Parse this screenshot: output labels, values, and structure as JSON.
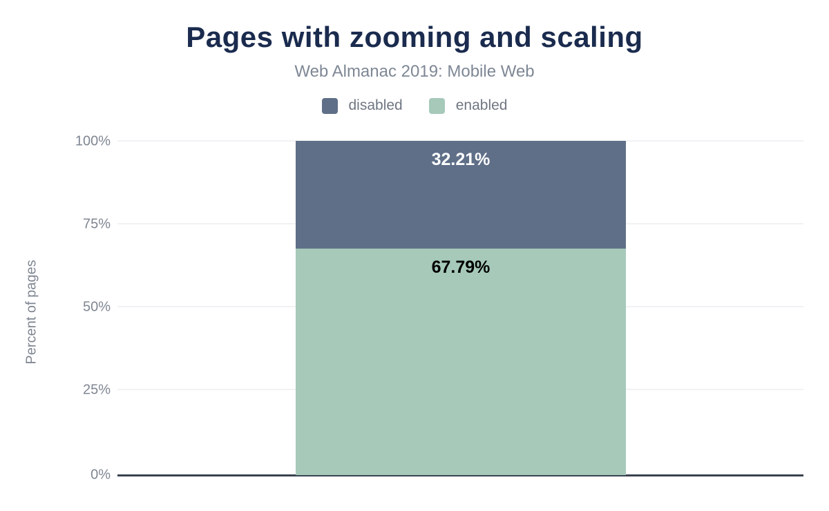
{
  "chart_data": {
    "type": "bar",
    "stacked": true,
    "title": "Pages with zooming and scaling",
    "subtitle": "Web Almanac 2019: Mobile Web",
    "ylabel": "Percent of pages",
    "xlabel": "",
    "categories": [
      ""
    ],
    "ylim": [
      0,
      100
    ],
    "grid": true,
    "legend_position": "top",
    "yticks": [
      "0%",
      "25%",
      "50%",
      "75%",
      "100%"
    ],
    "series": [
      {
        "name": "disabled",
        "values": [
          32.21
        ],
        "label": "32.21%",
        "color": "#5f6f88",
        "label_color": "#ffffff"
      },
      {
        "name": "enabled",
        "values": [
          67.79
        ],
        "label": "67.79%",
        "color": "#a6c9ba",
        "label_color": "#000000"
      }
    ],
    "colors": {
      "title": "#1a2b4e",
      "subtitle": "#7e8795",
      "legend_text": "#6f7682",
      "axis_text": "#7f8692",
      "axis_line": "#3a4250",
      "gridline": "#f2f2f5",
      "background": "#ffffff"
    }
  }
}
